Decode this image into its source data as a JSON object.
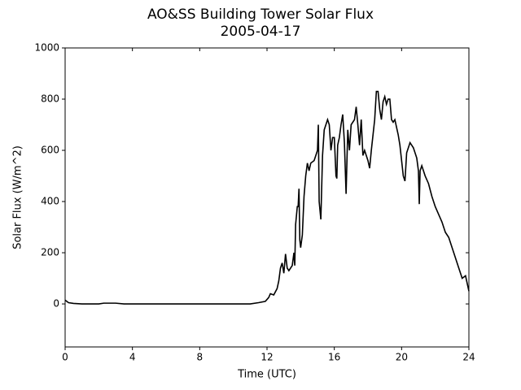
{
  "chart_data": {
    "type": "line",
    "title": "AO&SS Building Tower Solar Flux",
    "subtitle": "2005-04-17",
    "x_label": "Time (UTC)",
    "y_label": "Solar Flux (W/m^2)",
    "xlim": [
      0,
      24
    ],
    "xticks": [
      0,
      4,
      8,
      12,
      16,
      20,
      24
    ],
    "ylim": [
      -168,
      1000
    ],
    "yticks": [
      0,
      200,
      400,
      600,
      800,
      1000
    ],
    "grid": false,
    "series": [
      {
        "color": "#000000",
        "x": [
          0,
          0.2,
          0.5,
          1,
          2,
          2.3,
          3,
          3.5,
          11,
          11.5,
          11.9,
          12.1,
          12.2,
          12.4,
          12.6,
          12.7,
          12.8,
          12.9,
          13.0,
          13.1,
          13.2,
          13.3,
          13.5,
          13.6,
          13.65,
          13.7,
          13.8,
          13.85,
          13.9,
          13.95,
          14.0,
          14.1,
          14.2,
          14.3,
          14.4,
          14.5,
          14.6,
          14.8,
          14.9,
          15.0,
          15.05,
          15.1,
          15.2,
          15.3,
          15.4,
          15.5,
          15.6,
          15.7,
          15.8,
          15.9,
          16.0,
          16.1,
          16.15,
          16.2,
          16.3,
          16.4,
          16.5,
          16.6,
          16.7,
          16.8,
          16.9,
          17.0,
          17.2,
          17.3,
          17.4,
          17.5,
          17.6,
          17.7,
          17.8,
          17.9,
          18.0,
          18.1,
          18.2,
          18.4,
          18.5,
          18.6,
          18.7,
          18.8,
          18.9,
          19.0,
          19.1,
          19.2,
          19.3,
          19.4,
          19.5,
          19.6,
          19.7,
          19.8,
          19.9,
          20.0,
          20.1,
          20.2,
          20.3,
          20.4,
          20.5,
          20.6,
          20.7,
          20.8,
          20.9,
          21.0,
          21.05,
          21.1,
          21.2,
          21.4,
          21.6,
          21.8,
          22.0,
          22.2,
          22.4,
          22.6,
          22.8,
          23.0,
          23.2,
          23.4,
          23.5,
          23.6,
          23.8,
          24.0
        ],
        "values": [
          15,
          5,
          2,
          0,
          0,
          3,
          3,
          0,
          0,
          5,
          10,
          25,
          40,
          35,
          60,
          90,
          140,
          160,
          120,
          195,
          140,
          130,
          150,
          200,
          150,
          310,
          380,
          380,
          450,
          250,
          220,
          270,
          420,
          500,
          550,
          520,
          550,
          560,
          580,
          600,
          700,
          400,
          330,
          580,
          680,
          700,
          720,
          700,
          600,
          650,
          650,
          500,
          490,
          620,
          650,
          700,
          740,
          630,
          430,
          680,
          600,
          700,
          720,
          770,
          700,
          620,
          720,
          580,
          600,
          580,
          560,
          530,
          600,
          720,
          830,
          830,
          760,
          720,
          790,
          810,
          780,
          800,
          800,
          720,
          710,
          720,
          690,
          660,
          620,
          560,
          500,
          480,
          590,
          610,
          630,
          620,
          610,
          590,
          570,
          520,
          390,
          520,
          540,
          500,
          470,
          420,
          380,
          350,
          320,
          280,
          260,
          220,
          180,
          140,
          120,
          100,
          110,
          50
        ]
      }
    ]
  }
}
